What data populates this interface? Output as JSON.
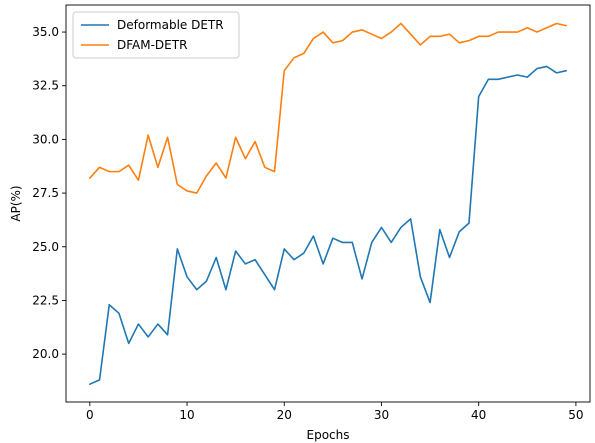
{
  "chart_data": {
    "type": "line",
    "xlabel": "Epochs",
    "ylabel": "AP(%)",
    "xlim": [
      -2.45,
      51.45
    ],
    "ylim": [
      17.77,
      36.26
    ],
    "xticks": [
      0,
      10,
      20,
      30,
      40,
      50
    ],
    "xtick_labels": [
      "0",
      "10",
      "20",
      "30",
      "40",
      "50"
    ],
    "yticks": [
      20.0,
      22.5,
      25.0,
      27.5,
      30.0,
      32.5,
      35.0
    ],
    "ytick_labels": [
      "20.0",
      "22.5",
      "25.0",
      "27.5",
      "30.0",
      "32.5",
      "35.0"
    ],
    "grid": false,
    "legend_position": "top-left",
    "x": [
      0,
      1,
      2,
      3,
      4,
      5,
      6,
      7,
      8,
      9,
      10,
      11,
      12,
      13,
      14,
      15,
      16,
      17,
      18,
      19,
      20,
      21,
      22,
      23,
      24,
      25,
      26,
      27,
      28,
      29,
      30,
      31,
      32,
      33,
      34,
      35,
      36,
      37,
      38,
      39,
      40,
      41,
      42,
      43,
      44,
      45,
      46,
      47,
      48,
      49
    ],
    "series": [
      {
        "name": "Deformable DETR",
        "color": "#1f77b4",
        "values": [
          18.6,
          18.8,
          22.3,
          21.9,
          20.5,
          21.4,
          20.8,
          21.4,
          20.9,
          24.9,
          23.6,
          23.0,
          23.4,
          24.5,
          23.0,
          24.8,
          24.2,
          24.4,
          23.7,
          23.0,
          24.9,
          24.4,
          24.7,
          25.5,
          24.2,
          25.4,
          25.2,
          25.2,
          23.5,
          25.2,
          25.9,
          25.2,
          25.9,
          26.3,
          23.6,
          22.4,
          25.8,
          24.5,
          25.7,
          26.1,
          32.0,
          32.8,
          32.8,
          32.9,
          33.0,
          32.9,
          33.3,
          33.4,
          33.1,
          33.2
        ]
      },
      {
        "name": "DFAM-DETR",
        "color": "#ff7f0e",
        "values": [
          28.2,
          28.7,
          28.5,
          28.5,
          28.8,
          28.1,
          30.2,
          28.7,
          30.1,
          27.9,
          27.6,
          27.5,
          28.3,
          28.9,
          28.2,
          30.1,
          29.1,
          29.9,
          28.7,
          28.5,
          33.2,
          33.8,
          34.0,
          34.7,
          35.0,
          34.5,
          34.6,
          35.0,
          35.1,
          34.9,
          34.7,
          35.0,
          35.4,
          34.9,
          34.4,
          34.8,
          34.8,
          34.9,
          34.5,
          34.6,
          34.8,
          34.8,
          35.0,
          35.0,
          35.0,
          35.2,
          35.0,
          35.2,
          35.4,
          35.3
        ]
      }
    ]
  }
}
